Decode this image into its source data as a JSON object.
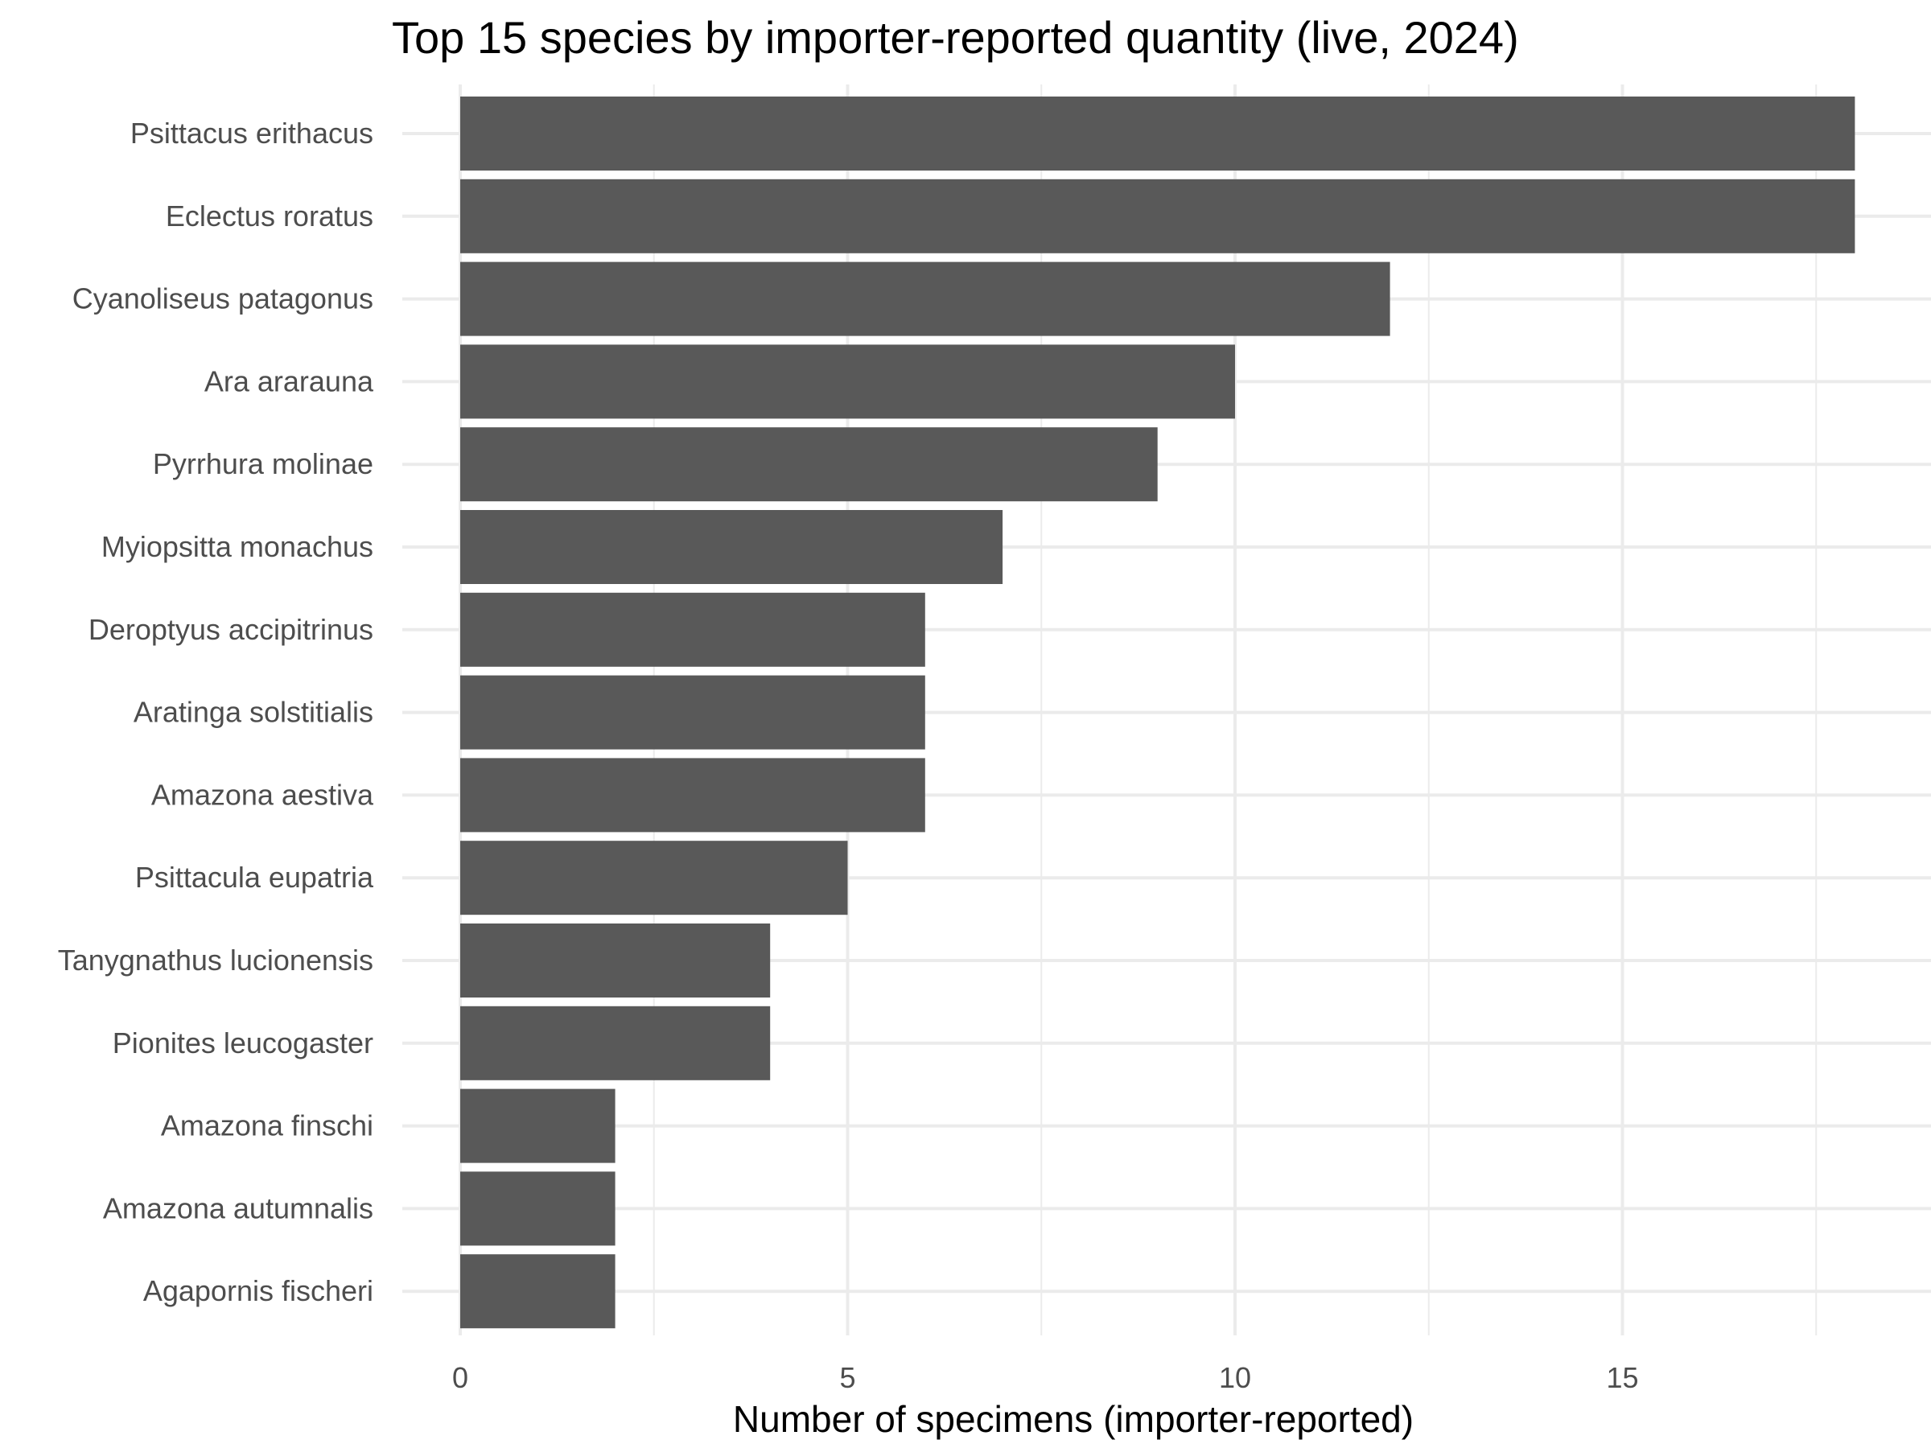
{
  "chart_data": {
    "type": "bar",
    "orientation": "horizontal",
    "title": "Top 15 species by importer-reported quantity (live, 2024)",
    "xlabel": "Number of specimens (importer-reported)",
    "ylabel": "",
    "xlim": [
      0,
      18.9
    ],
    "x_ticks": [
      0,
      5,
      10,
      15
    ],
    "grid": true,
    "categories": [
      "Psittacus erithacus",
      "Eclectus roratus",
      "Cyanoliseus patagonus",
      "Ara ararauna",
      "Pyrrhura molinae",
      "Myiopsitta monachus",
      "Deroptyus accipitrinus",
      "Aratinga solstitialis",
      "Amazona aestiva",
      "Psittacula eupatria",
      "Tanygnathus lucionensis",
      "Pionites leucogaster",
      "Amazona finschi",
      "Amazona autumnalis",
      "Agapornis fischeri"
    ],
    "values": [
      18,
      18,
      12,
      10,
      9,
      7,
      6,
      6,
      6,
      5,
      4,
      4,
      2,
      2,
      2
    ],
    "colors": {
      "bar": "#595959",
      "grid": "#ebebeb",
      "background": "#ffffff"
    }
  }
}
